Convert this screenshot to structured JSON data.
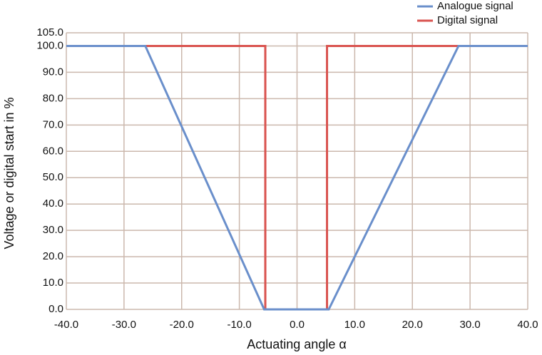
{
  "chart_data": {
    "type": "line",
    "x_label": "Actuating angle α",
    "y_label": "Voltage or digital start in %",
    "series": [
      {
        "name": "Analogue signal",
        "color": "#6a8fcb",
        "x": [
          -40,
          -26.3,
          -5.7,
          5.5,
          28,
          40
        ],
        "values": [
          100,
          100,
          0,
          0,
          100,
          100
        ]
      },
      {
        "name": "Digital signal",
        "color": "#d9534f",
        "x": [
          -40,
          -5.5,
          -5.5,
          5.2,
          5.2,
          40
        ],
        "values": [
          100,
          100,
          0,
          0,
          100,
          100
        ]
      }
    ],
    "xlim": [
      -40,
      40
    ],
    "xticks": [
      {
        "value": -40,
        "label": "-40.0"
      },
      {
        "value": -30,
        "label": "-30.0"
      },
      {
        "value": -20,
        "label": "-20.0"
      },
      {
        "value": -10,
        "label": "-10.0"
      },
      {
        "value": 0,
        "label": "0.0"
      },
      {
        "value": 10,
        "label": "10.0"
      },
      {
        "value": 20,
        "label": "20.0"
      },
      {
        "value": 30,
        "label": "30.0"
      },
      {
        "value": 40,
        "label": "40.0"
      }
    ],
    "ylim": [
      0,
      105
    ],
    "yticks": [
      {
        "value": 0,
        "label": "0.0"
      },
      {
        "value": 10,
        "label": "10.0"
      },
      {
        "value": 20,
        "label": "20.0"
      },
      {
        "value": 30,
        "label": "30.0"
      },
      {
        "value": 40,
        "label": "40.0"
      },
      {
        "value": 50,
        "label": "50.0"
      },
      {
        "value": 60,
        "label": "60.0"
      },
      {
        "value": 70,
        "label": "70.0"
      },
      {
        "value": 80,
        "label": "80.0"
      },
      {
        "value": 90,
        "label": "90.0"
      },
      {
        "value": 100,
        "label": "100.0"
      },
      {
        "value": 105,
        "label": "105.0"
      }
    ],
    "grid": true
  }
}
